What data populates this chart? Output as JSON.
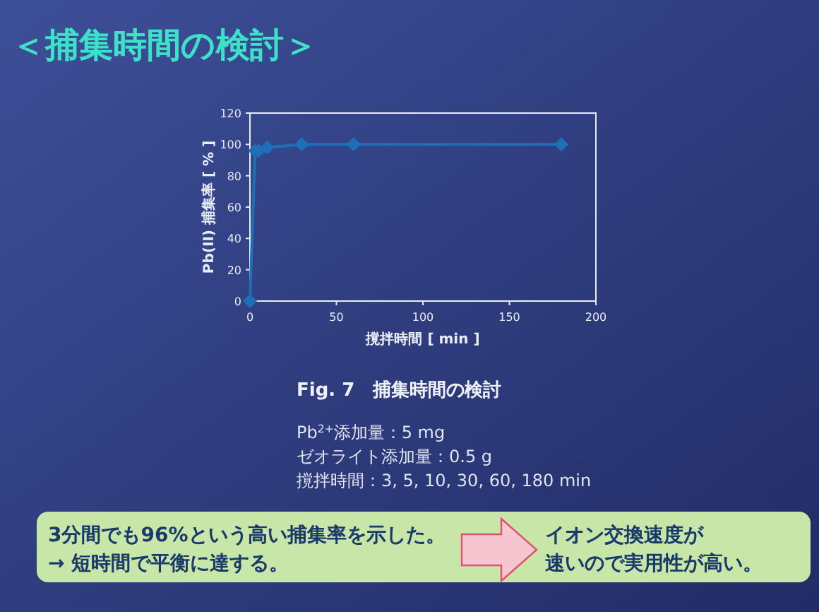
{
  "chart_data": {
    "type": "line",
    "title": "＜捕集時間の検討＞",
    "xlabel": "撹拌時間 [ min ]",
    "ylabel": "Pb(II) 捕集率 [ % ]",
    "x": [
      0,
      3,
      5,
      10,
      30,
      60,
      180
    ],
    "series": [
      {
        "color": "#1f6fb8",
        "values": [
          0,
          96,
          96,
          98,
          100,
          100,
          100
        ]
      }
    ],
    "xlim": [
      0,
      200
    ],
    "xticks": [
      0,
      50,
      100,
      150,
      200
    ],
    "ylim": [
      0,
      120
    ],
    "yticks": [
      0,
      20,
      40,
      60,
      80,
      100,
      120
    ],
    "marker": "diamond",
    "line_style": "solid",
    "grid": false,
    "annotations": [
      "Fig. 7　捕集時間の検討",
      "Pb$^{2+}$添加量：5 mg",
      "ゼオライト添加量：0.5 g",
      "撹拌時間：3, 5, 10, 30, 60, 180 min",
      "3分間でも96%という高い捕集率を示した。",
      "→ 短時間で平衡に達する。",
      "イオン交換速度が",
      "速いので実用性が高い。"
    ]
  }
}
